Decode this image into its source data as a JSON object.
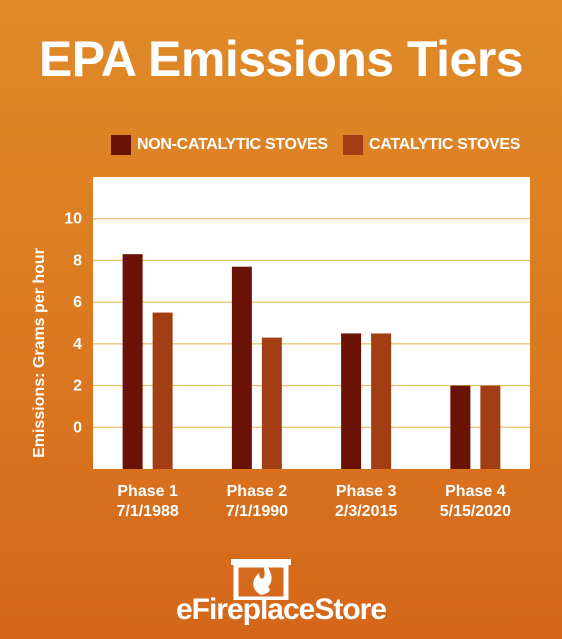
{
  "chart_data": {
    "type": "bar",
    "title": "EPA Emissions Tiers",
    "ylabel": "Emissions: Grams per hour",
    "xlabel": "",
    "categories": [
      [
        "Phase 1",
        "7/1/1988"
      ],
      [
        "Phase 2",
        "7/1/1990"
      ],
      [
        "Phase 3",
        "2/3/2015"
      ],
      [
        "Phase 4",
        "5/15/2020"
      ]
    ],
    "series": [
      {
        "name": "NON-CATALYTIC STOVES",
        "color": "#6b1206",
        "values": [
          8.3,
          7.7,
          4.5,
          2.0
        ]
      },
      {
        "name": "CATALYTIC STOVES",
        "color": "#a33d14",
        "values": [
          5.5,
          4.3,
          4.5,
          2.0
        ]
      }
    ],
    "yticks": [
      0,
      2,
      4,
      6,
      8,
      10
    ],
    "ylim": [
      -2,
      12
    ],
    "grid": true,
    "legend": "top"
  },
  "colors": {
    "background_top": "#e08a28",
    "background_bottom": "#d4661a",
    "plot_background": "#ffffff",
    "gridline": "#e8b24a"
  },
  "logo": {
    "text": "eFireplaceStore",
    "icon": "fireplace-flame-icon"
  }
}
